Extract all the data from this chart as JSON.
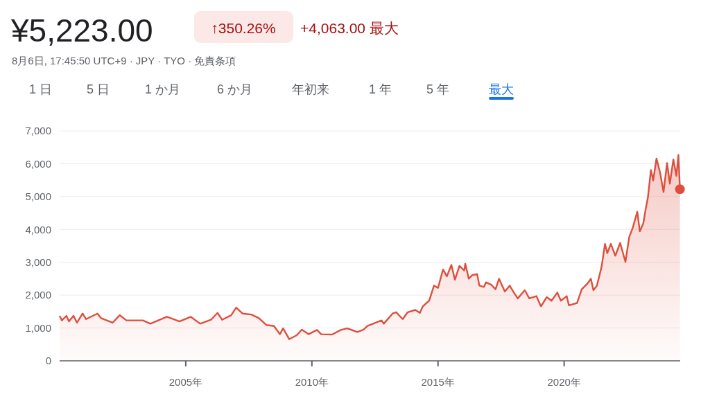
{
  "chart_data": {
    "type": "area",
    "title": "¥5,223.00",
    "subtitle": "8月6日, 17:45:50 UTC+9 · JPY · TYO · 免責条項",
    "annotations": [
      "↑350.26%",
      "+4,063.00 最大",
      "1 日",
      "5 日",
      "1 か月",
      "6 か月",
      "年初来",
      "1 年",
      "5 年",
      "最大"
    ],
    "series": [
      {
        "color": "#dd4f3d",
        "x": [
          2000.0,
          2000.09,
          2000.27,
          2000.37,
          2000.55,
          2000.69,
          2000.91,
          2001.05,
          2001.5,
          2001.64,
          2002.1,
          2002.38,
          2002.65,
          2003.3,
          2003.6,
          2004.25,
          2004.75,
          2005.2,
          2005.57,
          2006.0,
          2006.26,
          2006.44,
          2006.8,
          2007.0,
          2007.25,
          2007.6,
          2007.9,
          2008.2,
          2008.5,
          2008.73,
          2008.86,
          2009.1,
          2009.4,
          2009.6,
          2009.87,
          2010.2,
          2010.37,
          2010.8,
          2011.15,
          2011.4,
          2011.8,
          2012.05,
          2012.2,
          2012.76,
          2012.85,
          2013.2,
          2013.34,
          2013.6,
          2013.8,
          2014.1,
          2014.28,
          2014.4,
          2014.65,
          2014.84,
          2015.0,
          2015.2,
          2015.35,
          2015.53,
          2015.67,
          2015.85,
          2016.04,
          2016.08,
          2016.22,
          2016.36,
          2016.55,
          2016.64,
          2016.82,
          2016.9,
          2017.1,
          2017.28,
          2017.42,
          2017.65,
          2017.84,
          2017.98,
          2018.16,
          2018.44,
          2018.62,
          2018.9,
          2019.08,
          2019.31,
          2019.5,
          2019.73,
          2019.87,
          2020.1,
          2020.19,
          2020.51,
          2020.7,
          2020.93,
          2021.06,
          2021.16,
          2021.3,
          2021.48,
          2021.62,
          2021.71,
          2021.85,
          2022.03,
          2022.22,
          2022.43,
          2022.58,
          2022.72,
          2022.9,
          2023.0,
          2023.14,
          2023.23,
          2023.32,
          2023.44,
          2023.53,
          2023.66,
          2023.8,
          2023.94,
          2024.08,
          2024.19,
          2024.33,
          2024.45,
          2024.53,
          2024.59
        ],
        "values": [
          1370,
          1230,
          1370,
          1200,
          1370,
          1160,
          1440,
          1270,
          1440,
          1300,
          1160,
          1390,
          1230,
          1230,
          1130,
          1340,
          1200,
          1340,
          1130,
          1250,
          1460,
          1250,
          1390,
          1620,
          1440,
          1410,
          1300,
          1090,
          1060,
          810,
          990,
          660,
          780,
          950,
          810,
          940,
          810,
          800,
          940,
          990,
          880,
          950,
          1060,
          1230,
          1130,
          1440,
          1480,
          1270,
          1480,
          1550,
          1460,
          1660,
          1830,
          2290,
          2220,
          2780,
          2570,
          2920,
          2470,
          2890,
          2750,
          2960,
          2500,
          2610,
          2640,
          2290,
          2250,
          2390,
          2320,
          2180,
          2500,
          2110,
          2290,
          2110,
          1900,
          2150,
          1900,
          1970,
          1660,
          1940,
          1830,
          2080,
          1830,
          1970,
          1690,
          1760,
          2180,
          2360,
          2500,
          2150,
          2290,
          2850,
          3560,
          3280,
          3560,
          3200,
          3590,
          3010,
          3770,
          4050,
          4540,
          3940,
          4190,
          4610,
          4970,
          5810,
          5490,
          6160,
          5740,
          5140,
          6020,
          5390,
          6130,
          5630,
          6270,
          5223
        ]
      }
    ],
    "xlim": [
      2000.0,
      2024.6
    ],
    "xticks": [
      {
        "value": 2005,
        "label": "2005年"
      },
      {
        "value": 2010,
        "label": "2010年"
      },
      {
        "value": 2015,
        "label": "2015年"
      },
      {
        "value": 2020,
        "label": "2020年"
      }
    ],
    "ylim": [
      0,
      7000
    ],
    "yticks": [
      0,
      {
        "value": 1000,
        "label": "1,000"
      },
      {
        "value": 2000,
        "label": "2,000"
      },
      {
        "value": 3000,
        "label": "3,000"
      },
      {
        "value": 4000,
        "label": "4,000"
      },
      {
        "value": 5000,
        "label": "5,000"
      },
      {
        "value": 6000,
        "label": "6,000"
      },
      {
        "value": 7000,
        "label": "7,000"
      }
    ],
    "grid": "y",
    "line_style": "solid"
  }
}
